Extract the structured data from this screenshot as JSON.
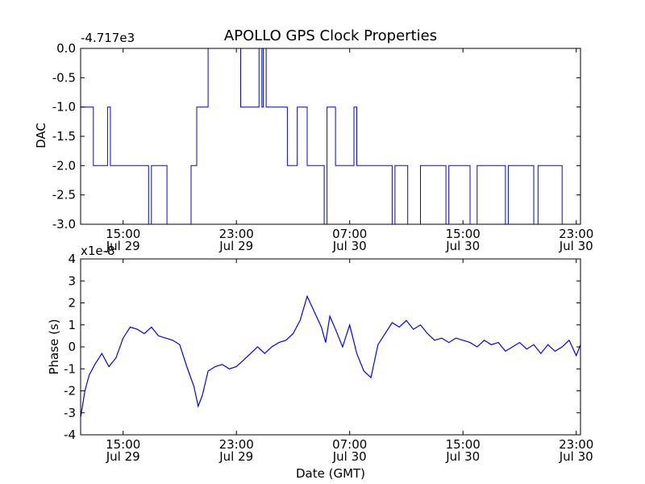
{
  "figure_title": "APOLLO GPS Clock Properties",
  "xlabel": "Date (GMT)",
  "x_ticks": [
    {
      "time": "15:00",
      "date": "Jul 29",
      "hours": 3
    },
    {
      "time": "23:00",
      "date": "Jul 29",
      "hours": 11
    },
    {
      "time": "07:00",
      "date": "Jul 30",
      "hours": 19
    },
    {
      "time": "15:00",
      "date": "Jul 30",
      "hours": 27
    },
    {
      "time": "23:00",
      "date": "Jul 30",
      "hours": 35
    }
  ],
  "xlim_hours": [
    0,
    35.3
  ],
  "colors": {
    "line": "#0000ff",
    "axes": "#000000",
    "background": "#ffffff"
  },
  "chart_data": [
    {
      "type": "line",
      "ylabel": "DAC",
      "offset_text": "-4.717e3",
      "ylim": [
        -3.0,
        0.0
      ],
      "y_ticks": [
        "0.0",
        "-0.5",
        "-1.0",
        "-1.5",
        "-2.0",
        "-2.5",
        "-3.0"
      ],
      "y_tick_values": [
        0.0,
        -0.5,
        -1.0,
        -1.5,
        -2.0,
        -2.5,
        -3.0
      ],
      "x": [
        0.0,
        0.9,
        0.9,
        1.9,
        1.9,
        2.1,
        2.1,
        2.3,
        2.3,
        4.8,
        4.8,
        5.0,
        5.0,
        6.1,
        6.1,
        7.8,
        7.8,
        8.2,
        8.2,
        9.0,
        9.0,
        11.3,
        11.3,
        12.6,
        12.6,
        12.8,
        12.8,
        12.9,
        12.9,
        13.1,
        13.1,
        14.6,
        14.6,
        15.3,
        15.3,
        16.0,
        16.0,
        17.2,
        17.2,
        17.4,
        17.4,
        18.0,
        18.0,
        19.3,
        19.3,
        19.5,
        19.5,
        20.3,
        20.3,
        22.0,
        22.0,
        22.2,
        22.2,
        23.1,
        23.1,
        24.0,
        24.0,
        25.8,
        25.8,
        26.0,
        26.0,
        27.5,
        27.5,
        28.0,
        28.0,
        30.0,
        30.0,
        30.2,
        30.2,
        32.0,
        32.0,
        32.3,
        32.3,
        34.0,
        34.0,
        35.3
      ],
      "y": [
        -1.0,
        -1.0,
        -2.0,
        -2.0,
        -1.0,
        -1.0,
        -2.0,
        -2.0,
        -2.0,
        -2.0,
        -3.0,
        -3.0,
        -2.0,
        -2.0,
        -3.0,
        -3.0,
        -2.0,
        -2.0,
        -1.0,
        -1.0,
        0.0,
        0.0,
        -1.0,
        -1.0,
        0.0,
        0.0,
        -1.0,
        -1.0,
        0.0,
        0.0,
        -1.0,
        -1.0,
        -2.0,
        -2.0,
        -1.0,
        -1.0,
        -2.0,
        -2.0,
        -3.0,
        -3.0,
        -1.0,
        -1.0,
        -2.0,
        -2.0,
        -1.0,
        -1.0,
        -2.0,
        -2.0,
        -2.0,
        -2.0,
        -3.0,
        -3.0,
        -2.0,
        -2.0,
        -3.0,
        -3.0,
        -2.0,
        -2.0,
        -3.0,
        -3.0,
        -2.0,
        -2.0,
        -3.0,
        -3.0,
        -2.0,
        -2.0,
        -3.0,
        -3.0,
        -2.0,
        -2.0,
        -3.0,
        -3.0,
        -2.0,
        -2.0,
        -3.0,
        -3.0
      ]
    },
    {
      "type": "line",
      "ylabel": "Phase (s)",
      "offset_text": "x1e-8",
      "ylim": [
        -4,
        4
      ],
      "y_ticks": [
        "4",
        "3",
        "2",
        "1",
        "0",
        "-1",
        "-2",
        "-3",
        "-4"
      ],
      "y_tick_values": [
        4,
        3,
        2,
        1,
        0,
        -1,
        -2,
        -3,
        -4
      ],
      "x": [
        0.0,
        0.3,
        0.6,
        1.0,
        1.5,
        2.0,
        2.5,
        3.0,
        3.5,
        4.0,
        4.5,
        5.0,
        5.5,
        6.0,
        6.5,
        7.0,
        7.5,
        8.0,
        8.3,
        8.6,
        9.0,
        9.5,
        10.0,
        10.5,
        11.0,
        11.5,
        12.0,
        12.5,
        13.0,
        13.5,
        14.0,
        14.5,
        15.0,
        15.5,
        16.0,
        16.5,
        17.0,
        17.3,
        17.6,
        18.0,
        18.5,
        19.0,
        19.5,
        20.0,
        20.5,
        21.0,
        21.5,
        22.0,
        22.5,
        23.0,
        23.5,
        24.0,
        24.5,
        25.0,
        25.5,
        26.0,
        26.5,
        27.0,
        27.5,
        28.0,
        28.5,
        29.0,
        29.5,
        30.0,
        30.5,
        31.0,
        31.5,
        32.0,
        32.5,
        33.0,
        33.5,
        34.0,
        34.5,
        35.0,
        35.3
      ],
      "y": [
        -3.2,
        -2.0,
        -1.3,
        -0.8,
        -0.3,
        -0.9,
        -0.5,
        0.4,
        0.9,
        0.8,
        0.6,
        0.9,
        0.5,
        0.4,
        0.3,
        0.1,
        -0.9,
        -1.8,
        -2.7,
        -2.2,
        -1.1,
        -0.9,
        -0.8,
        -1.0,
        -0.9,
        -0.6,
        -0.3,
        0.0,
        -0.3,
        0.0,
        0.2,
        0.3,
        0.6,
        1.2,
        2.3,
        1.6,
        0.9,
        0.2,
        1.4,
        0.8,
        0.0,
        1.0,
        -0.3,
        -1.1,
        -1.4,
        0.1,
        0.6,
        1.1,
        0.9,
        1.2,
        0.8,
        1.0,
        0.6,
        0.3,
        0.4,
        0.2,
        0.4,
        0.3,
        0.2,
        0.0,
        0.3,
        0.1,
        0.2,
        -0.2,
        0.0,
        0.2,
        -0.1,
        0.1,
        -0.3,
        0.1,
        -0.2,
        0.0,
        0.3,
        -0.4,
        0.1
      ]
    }
  ]
}
